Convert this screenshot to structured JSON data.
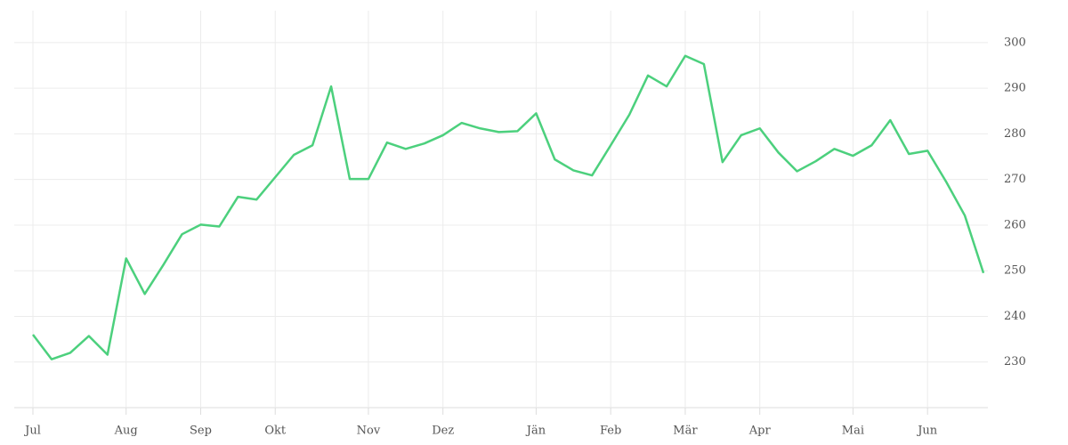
{
  "chart_data": {
    "type": "line",
    "categories": [
      "Jul",
      null,
      null,
      null,
      null,
      "Aug",
      null,
      null,
      null,
      "Sep",
      null,
      null,
      null,
      "Okt",
      null,
      null,
      null,
      null,
      "Nov",
      null,
      null,
      null,
      "Dez",
      null,
      null,
      null,
      null,
      "Jän",
      null,
      null,
      null,
      "Feb",
      null,
      null,
      null,
      "Mär",
      null,
      null,
      null,
      "Apr",
      null,
      null,
      null,
      null,
      "Mai",
      null,
      null,
      null,
      "Jun",
      null,
      null,
      null
    ],
    "series": [
      {
        "color": "#4cd07d",
        "values": [
          236,
          230.6,
          232,
          235.7,
          231.6,
          252.7,
          244.9,
          251.3,
          258,
          260.1,
          259.7,
          266.2,
          265.6,
          270.5,
          275.4,
          277.5,
          290.4,
          270.1,
          270.1,
          278.1,
          276.7,
          277.9,
          279.7,
          282.4,
          281.2,
          280.4,
          280.6,
          284.5,
          274.4,
          272,
          270.9,
          277.5,
          284.2,
          292.8,
          290.4,
          297.1,
          295.3,
          273.8,
          279.7,
          281.2,
          275.9,
          271.8,
          274,
          276.7,
          275.2,
          277.5,
          283,
          275.6,
          276.3,
          269.5,
          262.1,
          249.5
        ]
      }
    ],
    "ylim": [
      220,
      307
    ],
    "yticks": [
      230,
      240,
      250,
      260,
      270,
      280,
      290,
      300
    ],
    "grid": true
  }
}
